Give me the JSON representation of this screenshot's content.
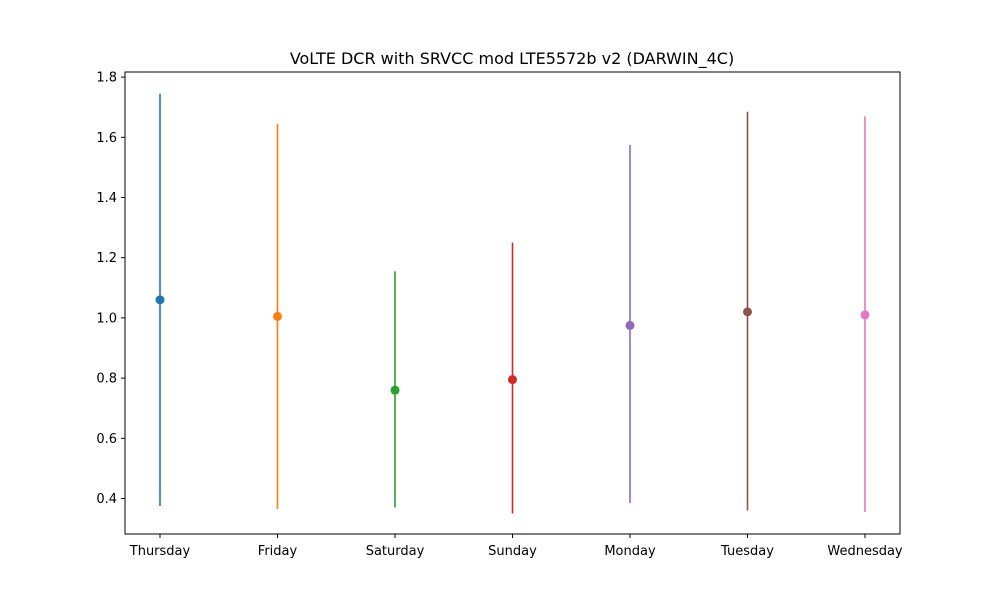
{
  "chart_data": {
    "type": "scatter",
    "title": "VoLTE DCR with SRVCC mod LTE5572b v2 (DARWIN_4C)",
    "xlabel": "",
    "ylabel": "",
    "categories": [
      "Thursday",
      "Friday",
      "Saturday",
      "Sunday",
      "Monday",
      "Tuesday",
      "Wednesday"
    ],
    "series": [
      {
        "category": "Thursday",
        "value": 1.06,
        "low": 0.375,
        "high": 1.745,
        "color": "#1f77b4"
      },
      {
        "category": "Friday",
        "value": 1.005,
        "low": 0.365,
        "high": 1.645,
        "color": "#ff7f0e"
      },
      {
        "category": "Saturday",
        "value": 0.76,
        "low": 0.37,
        "high": 1.155,
        "color": "#2ca02c"
      },
      {
        "category": "Sunday",
        "value": 0.795,
        "low": 0.35,
        "high": 1.25,
        "color": "#d62728"
      },
      {
        "category": "Monday",
        "value": 0.975,
        "low": 0.385,
        "high": 1.575,
        "color": "#9467bd"
      },
      {
        "category": "Tuesday",
        "value": 1.02,
        "low": 0.36,
        "high": 1.685,
        "color": "#8c564b"
      },
      {
        "category": "Wednesday",
        "value": 1.01,
        "low": 0.355,
        "high": 1.67,
        "color": "#e377c2"
      }
    ],
    "y_ticks": [
      "0.4",
      "0.6",
      "0.8",
      "1.0",
      "1.2",
      "1.4",
      "1.6",
      "1.8"
    ],
    "ylim": [
      0.282,
      1.817
    ],
    "grid": false,
    "legend": "none"
  }
}
